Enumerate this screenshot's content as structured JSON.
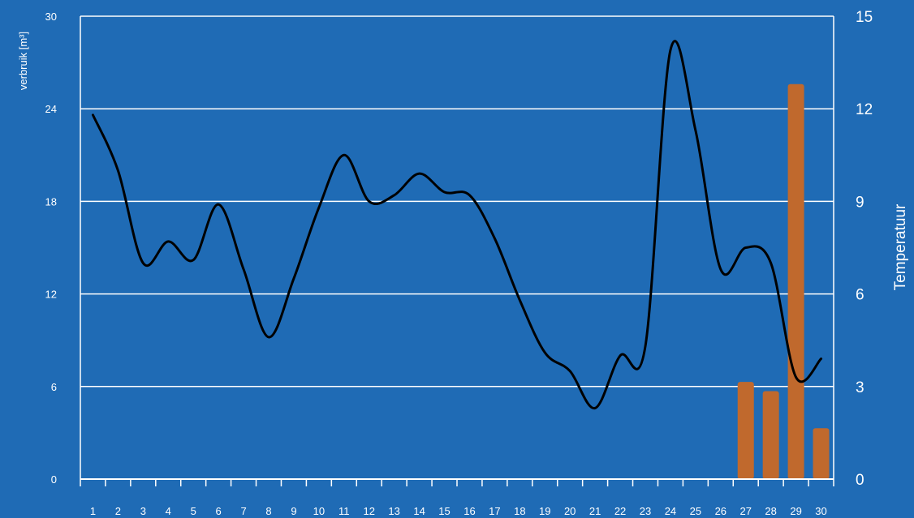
{
  "chart_data": {
    "type": "bar+line",
    "background": "#1f6bb5",
    "grid": true,
    "categories": [
      "1",
      "2",
      "3",
      "4",
      "5",
      "6",
      "7",
      "8",
      "9",
      "10",
      "11",
      "12",
      "13",
      "14",
      "15",
      "16",
      "17",
      "18",
      "19",
      "20",
      "21",
      "22",
      "23",
      "24",
      "25",
      "26",
      "27",
      "28",
      "29",
      "30"
    ],
    "y_left": {
      "label": "verbruik [m³]",
      "ylim": [
        0,
        30
      ],
      "ticks": [
        "0",
        "6",
        "12",
        "18",
        "24",
        "30"
      ]
    },
    "y_right": {
      "label": "Temperatuur",
      "ylim": [
        0,
        15
      ],
      "ticks": [
        "0",
        "3",
        "6",
        "9",
        "12",
        "15"
      ]
    },
    "series": [
      {
        "type": "bar",
        "axis": "left",
        "color": "#c0692d",
        "values": [
          0,
          0,
          0,
          0,
          0,
          0,
          0,
          0,
          0,
          0,
          0,
          0,
          0,
          0,
          0,
          0,
          0,
          0,
          0,
          0,
          0,
          0,
          0,
          0,
          0,
          0,
          6.3,
          5.7,
          25.6,
          3.3
        ]
      },
      {
        "type": "line",
        "axis": "right",
        "color": "#000000",
        "values": [
          11.8,
          10.0,
          7.0,
          7.7,
          7.1,
          8.9,
          6.8,
          4.6,
          6.5,
          8.8,
          10.5,
          9.0,
          9.2,
          9.9,
          9.3,
          9.2,
          7.8,
          5.8,
          4.1,
          3.5,
          2.3,
          4.0,
          4.3,
          13.9,
          11.3,
          6.8,
          7.5,
          7.0,
          3.3,
          3.9
        ]
      }
    ]
  }
}
